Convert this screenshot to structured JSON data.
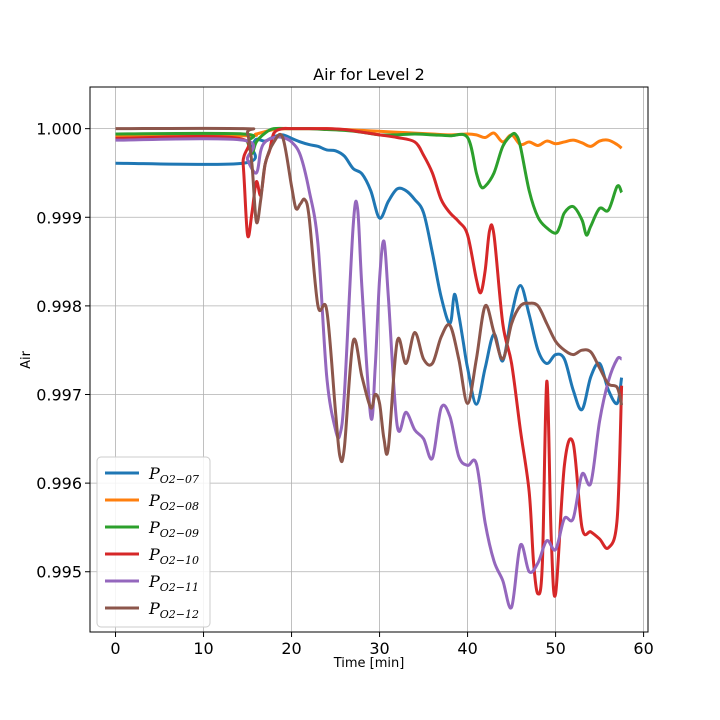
{
  "chart_data": {
    "type": "line",
    "title": "Air for Level 2",
    "xlabel": "Time [min]",
    "ylabel": "Air",
    "xlim": [
      -2.9,
      60.5
    ],
    "ylim": [
      0.99432,
      1.00047
    ],
    "xticks": [
      0,
      10,
      20,
      30,
      40,
      50,
      60
    ],
    "yticks": [
      0.995,
      0.996,
      0.997,
      0.998,
      0.999,
      1.0
    ],
    "ytick_labels": [
      "0.995",
      "0.996",
      "0.997",
      "0.998",
      "0.999",
      "1.000"
    ],
    "grid": true,
    "legend_position": "lower-left",
    "series": [
      {
        "name": "P",
        "name_sub": "O2−07",
        "color": "#1f77b4",
        "x": [
          0,
          14.5,
          15.5,
          16,
          17,
          18,
          19,
          20,
          21,
          22,
          23,
          24,
          25,
          26,
          27,
          28,
          29,
          30,
          31,
          32,
          33,
          34,
          35,
          36,
          37,
          38,
          38.5,
          39,
          39.5,
          40,
          41,
          42,
          43,
          44,
          45,
          46,
          47,
          48,
          49,
          50,
          51,
          52,
          53,
          54,
          55,
          56,
          57,
          57.5
        ],
        "y": [
          0.99961,
          0.99961,
          0.9998,
          0.99988,
          0.99986,
          0.99991,
          0.99993,
          0.99989,
          0.99985,
          0.99982,
          0.9998,
          0.99976,
          0.99975,
          0.99969,
          0.99955,
          0.99949,
          0.9993,
          0.99899,
          0.99918,
          0.99932,
          0.9993,
          0.9992,
          0.99905,
          0.9986,
          0.9981,
          0.9978,
          0.99813,
          0.9979,
          0.9976,
          0.9973,
          0.99689,
          0.9973,
          0.99768,
          0.99738,
          0.9979,
          0.99823,
          0.9979,
          0.9975,
          0.99735,
          0.99745,
          0.9974,
          0.99705,
          0.99683,
          0.9972,
          0.99735,
          0.99705,
          0.9969,
          0.99719
        ]
      },
      {
        "name": "P",
        "name_sub": "O2−08",
        "color": "#ff7f0e",
        "x": [
          0,
          14.5,
          16,
          18,
          20,
          22,
          24,
          26,
          28,
          30,
          32,
          34,
          36,
          38,
          40,
          41,
          42,
          43,
          44,
          45,
          46,
          47,
          48,
          49,
          50,
          51,
          52,
          53,
          54,
          55,
          56,
          57,
          57.5
        ],
        "y": [
          0.99992,
          0.99992,
          0.99994,
          0.99999,
          1.0,
          1.0,
          1.0,
          0.99999,
          0.99998,
          0.99997,
          0.99996,
          0.99995,
          0.99994,
          0.99993,
          0.99994,
          0.99993,
          0.9999,
          0.99995,
          0.99985,
          0.99993,
          0.99982,
          0.99985,
          0.99981,
          0.99986,
          0.99983,
          0.99985,
          0.99987,
          0.99984,
          0.9998,
          0.99986,
          0.99987,
          0.99982,
          0.99978
        ]
      },
      {
        "name": "P",
        "name_sub": "O2−09",
        "color": "#2ca02c",
        "x": [
          0,
          14.5,
          15,
          15.5,
          16,
          17,
          18,
          20,
          22,
          24,
          26,
          28,
          30,
          32,
          34,
          36,
          38,
          40,
          41,
          41.5,
          42,
          43,
          44,
          45,
          45.5,
          46,
          47,
          48,
          49,
          50,
          50.5,
          51,
          52,
          53,
          53.5,
          54,
          55,
          56,
          57,
          57.5
        ],
        "y": [
          0.99994,
          0.99994,
          0.99985,
          0.99972,
          0.99985,
          0.99995,
          1.0,
          1.0,
          1.0,
          0.99999,
          0.99998,
          0.99996,
          0.99993,
          0.99993,
          0.99994,
          0.99993,
          0.99992,
          0.9999,
          0.9995,
          0.99935,
          0.99935,
          0.9995,
          0.9998,
          0.99993,
          0.99993,
          0.9998,
          0.9993,
          0.999,
          0.99888,
          0.99882,
          0.9989,
          0.99905,
          0.99912,
          0.99897,
          0.9988,
          0.9989,
          0.9991,
          0.99908,
          0.99935,
          0.99928
        ]
      },
      {
        "name": "P",
        "name_sub": "O2−10",
        "color": "#d62728",
        "x": [
          0,
          14,
          14.5,
          15,
          15.5,
          16,
          16.5,
          17,
          17.5,
          18,
          19,
          20,
          22,
          24,
          26,
          28,
          30,
          32,
          34,
          35,
          36,
          37,
          38,
          39,
          40,
          41,
          41.5,
          42,
          42.5,
          43,
          44,
          45,
          46,
          47,
          47.5,
          48,
          48.5,
          49,
          49.5,
          50,
          51,
          52,
          53,
          54,
          55,
          56,
          57,
          57.5
        ],
        "y": [
          0.99989,
          0.99989,
          0.9996,
          0.9988,
          0.99905,
          0.9994,
          0.99925,
          0.9996,
          0.99975,
          0.99995,
          1.0,
          1.0,
          1.0,
          1.0,
          0.99999,
          0.99996,
          0.99993,
          0.9999,
          0.99985,
          0.9997,
          0.9995,
          0.9992,
          0.99905,
          0.99895,
          0.9988,
          0.9983,
          0.99815,
          0.9984,
          0.99885,
          0.9988,
          0.9978,
          0.99735,
          0.9966,
          0.9959,
          0.9951,
          0.99475,
          0.9951,
          0.99715,
          0.9954,
          0.99475,
          0.9962,
          0.99645,
          0.9955,
          0.99545,
          0.99537,
          0.99527,
          0.9956,
          0.9971
        ]
      },
      {
        "name": "P",
        "name_sub": "O2−11",
        "color": "#9467bd",
        "x": [
          0,
          14.5,
          15,
          16,
          16.5,
          17,
          18,
          19,
          20,
          21,
          22,
          23,
          24,
          25,
          25.5,
          26,
          27,
          27.5,
          28,
          29,
          29.5,
          30,
          30.5,
          31,
          32,
          33,
          34,
          35,
          36,
          37,
          38,
          39,
          40,
          41,
          42,
          43,
          44,
          45,
          46,
          47,
          48,
          49,
          50,
          51,
          52,
          53,
          54,
          55,
          56,
          57,
          57.5
        ],
        "y": [
          0.99987,
          0.99987,
          0.99965,
          0.9995,
          0.99975,
          0.99985,
          0.9999,
          0.9999,
          0.99985,
          0.9997,
          0.9993,
          0.9987,
          0.9972,
          0.9966,
          0.99655,
          0.997,
          0.9989,
          0.9991,
          0.9982,
          0.99675,
          0.9973,
          0.9983,
          0.99873,
          0.9981,
          0.99665,
          0.9968,
          0.9966,
          0.9965,
          0.99628,
          0.99685,
          0.99675,
          0.9963,
          0.9962,
          0.99622,
          0.99555,
          0.99512,
          0.9949,
          0.9946,
          0.9953,
          0.995,
          0.9951,
          0.99535,
          0.99525,
          0.9956,
          0.9956,
          0.9961,
          0.996,
          0.9967,
          0.99715,
          0.9974,
          0.9974
        ]
      },
      {
        "name": "P",
        "name_sub": "O2−12",
        "color": "#8c564b",
        "x": [
          0,
          14.5,
          15,
          15.5,
          16,
          16.5,
          17,
          18,
          19,
          20,
          20.5,
          21,
          21.5,
          22,
          23,
          24,
          25,
          25.5,
          26,
          27,
          28,
          29,
          29.5,
          30,
          30.5,
          31,
          32,
          33,
          34,
          35,
          36,
          37,
          38,
          39,
          40,
          41,
          42,
          43,
          44,
          45,
          46,
          47,
          48,
          49,
          50,
          51,
          52,
          53,
          54,
          55,
          56,
          57,
          57.5
        ],
        "y": [
          1.0,
          1.0,
          0.99995,
          0.9996,
          0.99895,
          0.9992,
          0.9996,
          0.99985,
          0.9999,
          0.99935,
          0.9991,
          0.99915,
          0.9992,
          0.999,
          0.998,
          0.99795,
          0.9968,
          0.9963,
          0.9964,
          0.9976,
          0.9972,
          0.99685,
          0.997,
          0.9969,
          0.9965,
          0.9964,
          0.9976,
          0.99735,
          0.9977,
          0.9974,
          0.99735,
          0.99765,
          0.99778,
          0.9974,
          0.9969,
          0.9974,
          0.998,
          0.9977,
          0.9974,
          0.9978,
          0.998,
          0.99803,
          0.998,
          0.9978,
          0.9976,
          0.9975,
          0.99745,
          0.9975,
          0.99748,
          0.9973,
          0.99712,
          0.99708,
          0.99688
        ]
      }
    ]
  }
}
